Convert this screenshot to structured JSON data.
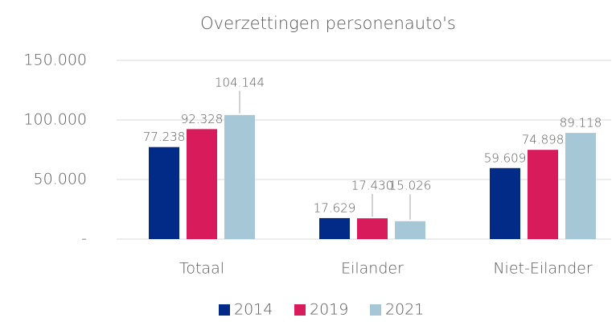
{
  "chart_data": {
    "type": "bar",
    "title": "Overzettingen personenauto's",
    "categories": [
      "Totaal",
      "Eilander",
      "Niet-Eilander"
    ],
    "series": [
      {
        "name": "2014",
        "color": "#022b87",
        "values": [
          77238,
          17629,
          59609
        ],
        "value_labels": [
          "77.238",
          "17.629",
          "59.609"
        ]
      },
      {
        "name": "2019",
        "color": "#d81b5b",
        "values": [
          92328,
          17430,
          74898
        ],
        "value_labels": [
          "92.328",
          "17.430",
          "74.898"
        ]
      },
      {
        "name": "2021",
        "color": "#a6c8d6",
        "values": [
          104144,
          15026,
          89118
        ],
        "value_labels": [
          "104.144",
          "15.026",
          "89.118"
        ]
      }
    ],
    "ylim": [
      0,
      150000
    ],
    "yticks": [
      {
        "value": 0,
        "label": "-"
      },
      {
        "value": 50000,
        "label": "50.000"
      },
      {
        "value": 100000,
        "label": "100.000"
      },
      {
        "value": 150000,
        "label": "150.000"
      }
    ],
    "grid": true,
    "legend": "bottom"
  }
}
